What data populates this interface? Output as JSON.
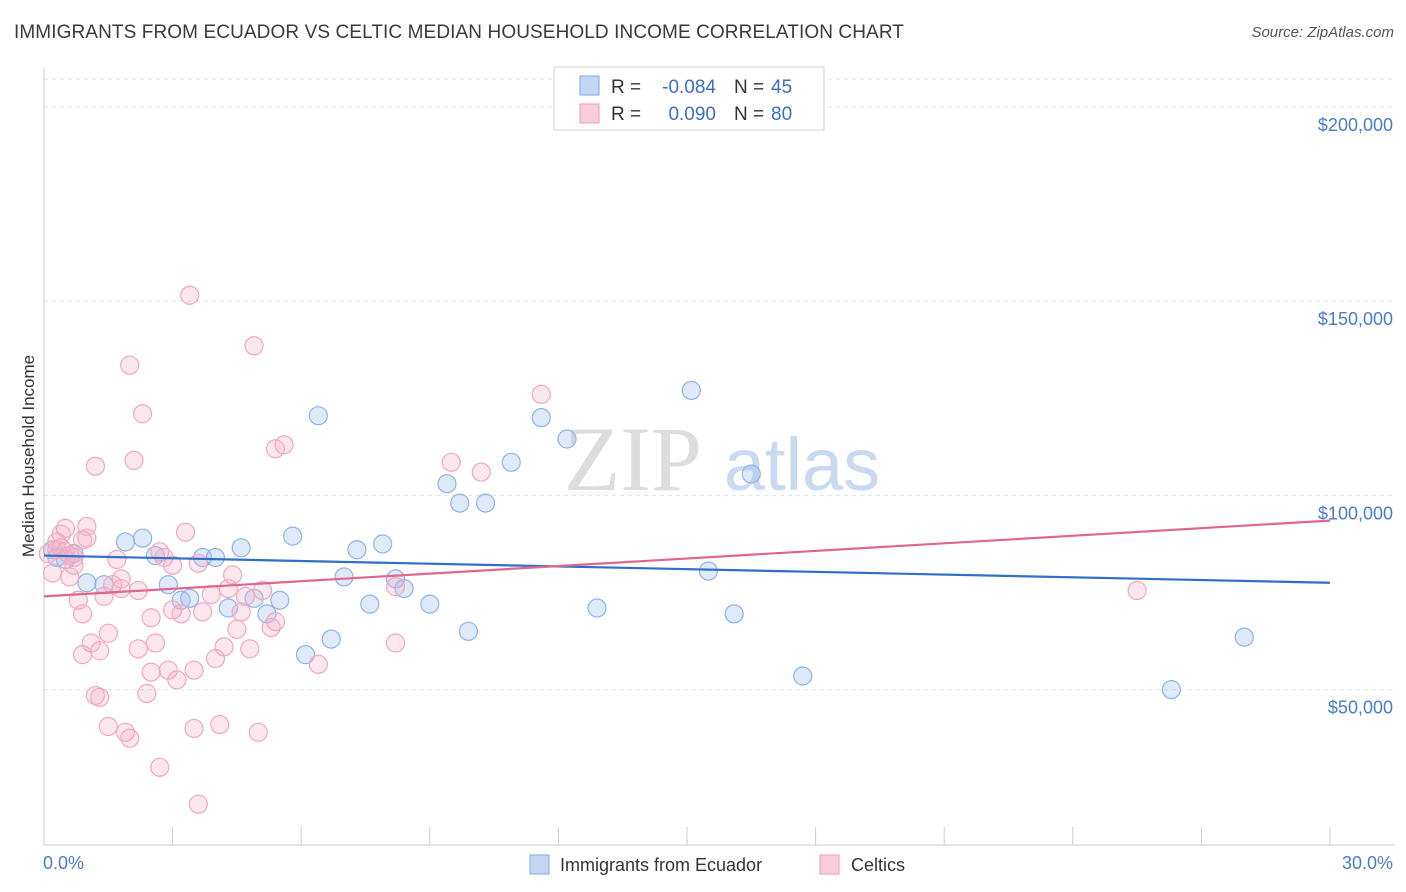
{
  "header": {
    "title": "IMMIGRANTS FROM ECUADOR VS CELTIC MEDIAN HOUSEHOLD INCOME CORRELATION CHART",
    "source": "Source: ZipAtlas.com"
  },
  "watermark": {
    "zip": "ZIP",
    "atlas": "atlas"
  },
  "chart_data": {
    "type": "scatter",
    "ylabel": "Median Household Income",
    "xlabel": "",
    "xlim": [
      0,
      30
    ],
    "ylim": [
      10000,
      210000
    ],
    "x_tick_labels": [
      "0.0%",
      "30.0%"
    ],
    "y_ticks": [
      50000,
      100000,
      150000,
      200000
    ],
    "y_tick_labels": [
      "$50,000",
      "$100,000",
      "$150,000",
      "$200,000"
    ],
    "grid": true,
    "legend_position": "top-center",
    "stats": [
      {
        "r_label": "R =",
        "r_value": "-0.084",
        "n_label": "N =",
        "n_value": "45"
      },
      {
        "r_label": "R =",
        "r_value": "0.090",
        "n_label": "N =",
        "n_value": "80"
      }
    ],
    "series": [
      {
        "name": "Immigrants from Ecuador",
        "color": "#8fb3e8",
        "line_color": "#2f6fca",
        "trend": [
          [
            0,
            84500
          ],
          [
            30,
            77500
          ]
        ],
        "points": [
          [
            0.2,
            86000
          ],
          [
            0.3,
            84000
          ],
          [
            0.5,
            83500
          ],
          [
            0.7,
            85000
          ],
          [
            1.0,
            77500
          ],
          [
            1.4,
            77000
          ],
          [
            1.9,
            88000
          ],
          [
            2.3,
            89000
          ],
          [
            2.6,
            84500
          ],
          [
            2.9,
            77000
          ],
          [
            3.2,
            73000
          ],
          [
            3.4,
            73500
          ],
          [
            3.7,
            84000
          ],
          [
            4.0,
            84000
          ],
          [
            4.3,
            71000
          ],
          [
            4.6,
            86500
          ],
          [
            4.9,
            73500
          ],
          [
            5.2,
            69500
          ],
          [
            5.5,
            73000
          ],
          [
            5.8,
            89500
          ],
          [
            6.1,
            59000
          ],
          [
            6.4,
            120500
          ],
          [
            6.7,
            63000
          ],
          [
            7.0,
            79000
          ],
          [
            7.3,
            86000
          ],
          [
            7.6,
            72000
          ],
          [
            7.9,
            87500
          ],
          [
            8.2,
            78500
          ],
          [
            8.4,
            76000
          ],
          [
            9.0,
            72000
          ],
          [
            9.4,
            103000
          ],
          [
            9.7,
            98000
          ],
          [
            9.9,
            65000
          ],
          [
            10.3,
            98000
          ],
          [
            10.9,
            108500
          ],
          [
            11.6,
            120000
          ],
          [
            12.2,
            114500
          ],
          [
            12.9,
            71000
          ],
          [
            15.1,
            127000
          ],
          [
            15.5,
            80500
          ],
          [
            16.1,
            69500
          ],
          [
            16.5,
            105500
          ],
          [
            17.7,
            53500
          ],
          [
            26.3,
            50000
          ],
          [
            28.0,
            63500
          ]
        ]
      },
      {
        "name": "Celtics",
        "color": "#f2a7bf",
        "line_color": "#e0668f",
        "trend": [
          [
            0,
            74000
          ],
          [
            30,
            93500
          ]
        ],
        "points": [
          [
            0.1,
            85000
          ],
          [
            0.2,
            80000
          ],
          [
            0.3,
            86000
          ],
          [
            0.3,
            88000
          ],
          [
            0.4,
            90000
          ],
          [
            0.5,
            85500
          ],
          [
            0.5,
            91500
          ],
          [
            0.6,
            79000
          ],
          [
            0.7,
            84000
          ],
          [
            0.7,
            82000
          ],
          [
            0.8,
            73000
          ],
          [
            0.9,
            59000
          ],
          [
            0.9,
            88500
          ],
          [
            1.0,
            92000
          ],
          [
            1.1,
            62000
          ],
          [
            1.2,
            107500
          ],
          [
            1.2,
            48500
          ],
          [
            1.3,
            60000
          ],
          [
            1.4,
            74000
          ],
          [
            1.5,
            64500
          ],
          [
            1.5,
            40500
          ],
          [
            1.6,
            77000
          ],
          [
            1.7,
            83500
          ],
          [
            1.8,
            76000
          ],
          [
            1.9,
            39000
          ],
          [
            2.0,
            37500
          ],
          [
            2.0,
            133500
          ],
          [
            2.1,
            109000
          ],
          [
            2.2,
            75500
          ],
          [
            2.3,
            121000
          ],
          [
            2.4,
            49000
          ],
          [
            2.5,
            68500
          ],
          [
            2.6,
            62000
          ],
          [
            2.7,
            30000
          ],
          [
            2.8,
            84000
          ],
          [
            2.9,
            55000
          ],
          [
            3.0,
            82000
          ],
          [
            3.1,
            52500
          ],
          [
            3.2,
            69500
          ],
          [
            3.3,
            90500
          ],
          [
            3.4,
            151500
          ],
          [
            3.5,
            40000
          ],
          [
            3.6,
            20500
          ],
          [
            3.7,
            70000
          ],
          [
            3.9,
            74500
          ],
          [
            4.0,
            58000
          ],
          [
            4.1,
            41000
          ],
          [
            4.2,
            61000
          ],
          [
            4.3,
            76000
          ],
          [
            4.4,
            79500
          ],
          [
            4.5,
            65500
          ],
          [
            4.6,
            70000
          ],
          [
            4.8,
            60500
          ],
          [
            4.9,
            138500
          ],
          [
            5.0,
            39000
          ],
          [
            5.1,
            75500
          ],
          [
            5.3,
            66000
          ],
          [
            5.4,
            112000
          ],
          [
            5.6,
            113000
          ],
          [
            6.4,
            56500
          ],
          [
            8.2,
            62000
          ],
          [
            8.2,
            76500
          ],
          [
            9.5,
            108500
          ],
          [
            10.2,
            106000
          ],
          [
            11.6,
            126000
          ],
          [
            25.5,
            75500
          ],
          [
            1.0,
            89000
          ],
          [
            2.5,
            54500
          ],
          [
            3.5,
            55000
          ],
          [
            0.6,
            84500
          ],
          [
            1.8,
            78500
          ],
          [
            0.9,
            69500
          ],
          [
            3.0,
            70500
          ],
          [
            4.7,
            74000
          ],
          [
            2.2,
            60500
          ],
          [
            5.4,
            67500
          ],
          [
            0.4,
            86500
          ],
          [
            1.3,
            48000
          ],
          [
            2.7,
            85500
          ],
          [
            3.6,
            82500
          ]
        ]
      }
    ]
  }
}
